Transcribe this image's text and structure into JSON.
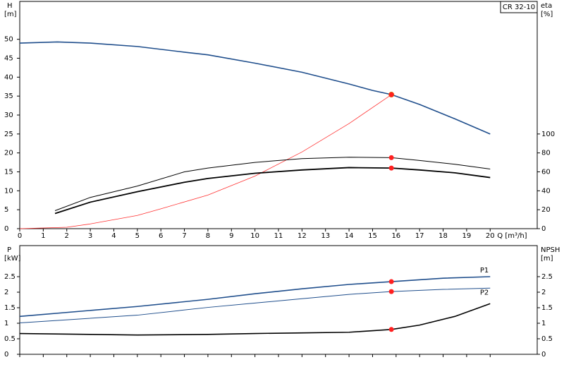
{
  "chart_data": [
    {
      "type": "line",
      "legend_box": "CR 32-10",
      "x_label": "Q [m³/h]",
      "y_label": "H",
      "y_unit": "[m]",
      "y2_label": "eta",
      "y2_unit": "[%]",
      "xlim": [
        0,
        22
      ],
      "xticks": [
        0,
        1,
        2,
        3,
        4,
        5,
        6,
        7,
        8,
        9,
        10,
        11,
        12,
        13,
        14,
        15,
        16,
        17,
        18,
        19,
        20
      ],
      "xtick_labels": true,
      "ylim": [
        0,
        60
      ],
      "yticks": [
        0,
        5,
        10,
        15,
        20,
        25,
        30,
        35,
        40,
        45,
        50
      ],
      "y2lim": [
        0,
        240
      ],
      "y2ticks": [
        0,
        20,
        40,
        60,
        80,
        100
      ],
      "duty_q": 15.8,
      "grid": false,
      "series": [
        {
          "color": "#1f4e8c",
          "width": 1.6,
          "x": [
            0,
            1.6,
            3,
            5,
            7,
            8,
            10,
            12,
            14,
            15,
            15.8,
            17,
            18.5,
            20
          ],
          "values": [
            49,
            49.3,
            49,
            48.1,
            46.6,
            45.9,
            43.7,
            41.3,
            38.2,
            36.5,
            35.4,
            32.8,
            29,
            25
          ]
        },
        {
          "color": "#ff3030",
          "width": 0.8,
          "axis": "y2",
          "x": [
            0,
            2,
            3,
            5,
            6,
            8,
            10,
            12,
            14,
            15.8
          ],
          "values": [
            0,
            1.5,
            5,
            14,
            21,
            35.5,
            55.5,
            81,
            111,
            141.5
          ]
        },
        {
          "color": "#000000",
          "width": 1,
          "axis": "y2",
          "x": [
            1.5,
            3,
            5,
            7,
            8,
            10,
            12,
            14,
            15.8,
            17,
            18.5,
            20
          ],
          "values": [
            19,
            33,
            45,
            60,
            64,
            70,
            74,
            75.5,
            75,
            72,
            68,
            63
          ]
        },
        {
          "color": "#000000",
          "width": 1.8,
          "axis": "y2",
          "x": [
            1.5,
            3,
            5,
            7,
            8,
            10,
            12,
            14,
            15.8,
            17,
            18.5,
            20
          ],
          "values": [
            16,
            28,
            39,
            49,
            53,
            58.5,
            62,
            64.5,
            64,
            62,
            59,
            54
          ]
        }
      ]
    },
    {
      "type": "line",
      "y_label": "P",
      "y_unit": "[kW]",
      "y2_label": "NPSH",
      "y2_unit": "[m]",
      "xlim": [
        0,
        22
      ],
      "xticks": [
        0,
        1,
        2,
        3,
        4,
        5,
        6,
        7,
        8,
        9,
        10,
        11,
        12,
        13,
        14,
        15,
        16,
        17,
        18,
        19,
        20
      ],
      "xtick_labels": false,
      "ylim": [
        0,
        3.5
      ],
      "yticks": [
        0,
        0.5,
        1,
        1.5,
        2,
        2.5
      ],
      "y2lim": [
        0,
        3.5
      ],
      "y2ticks": [
        0,
        0.5,
        1,
        1.5,
        2,
        2.5
      ],
      "duty_q": 15.8,
      "grid": false,
      "series": [
        {
          "name": "P1",
          "color": "#1f4e8c",
          "width": 1.6,
          "x": [
            0,
            5,
            8,
            10,
            12,
            14,
            15.8,
            18,
            20
          ],
          "values": [
            1.22,
            1.54,
            1.77,
            1.95,
            2.11,
            2.25,
            2.34,
            2.45,
            2.5
          ]
        },
        {
          "name": "P2",
          "color": "#1f4e8c",
          "width": 1,
          "x": [
            0,
            5,
            8,
            10,
            12,
            14,
            15.8,
            18,
            20
          ],
          "values": [
            1.01,
            1.26,
            1.51,
            1.65,
            1.79,
            1.93,
            2.02,
            2.09,
            2.13
          ]
        },
        {
          "color": "#000000",
          "width": 1.6,
          "axis": "y2",
          "x": [
            0,
            3,
            5,
            8,
            10,
            12,
            14,
            15.8,
            17,
            18.5,
            20
          ],
          "values": [
            0.67,
            0.64,
            0.62,
            0.64,
            0.67,
            0.69,
            0.71,
            0.8,
            0.94,
            1.22,
            1.63
          ]
        }
      ]
    }
  ]
}
